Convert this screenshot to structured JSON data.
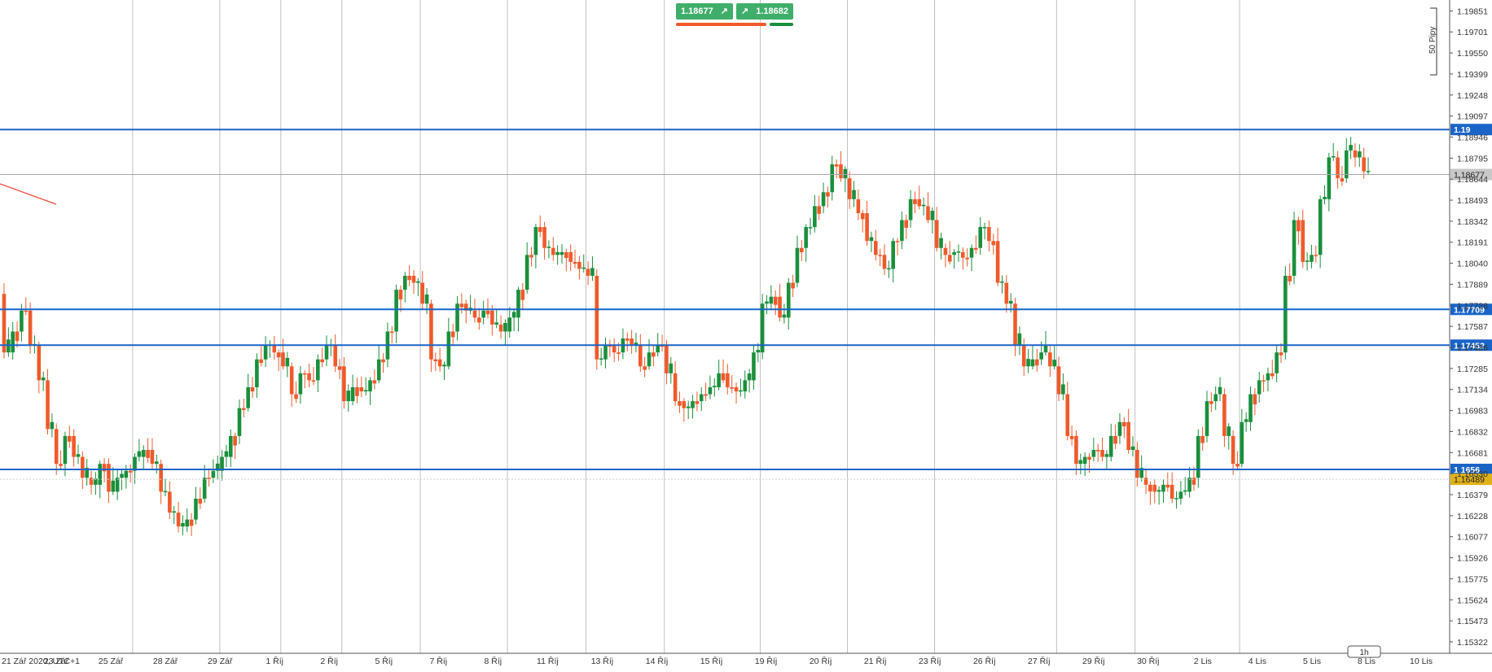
{
  "colors": {
    "bullish": "#1a8f3c",
    "bearish": "#f05a2b",
    "level_line": "#1a64c8",
    "level_label_bg": "#1a64c8",
    "current_price_bg": "#c8c8c8",
    "bid_price_bg": "#e0b21a",
    "quote_bg": "#3fae6a",
    "grid": "#c0c0c0",
    "axis_text": "#333333"
  },
  "quote_panel": {
    "sell_price": "1.18677",
    "sell_icon": "arrow-up-right-icon",
    "buy_icon": "arrow-up-right-icon",
    "buy_price": "1.18682"
  },
  "scale_label": "50 Pipy",
  "timeframe_label": "1h",
  "chart_data": {
    "type": "candlestick",
    "symbol_info": "21 Zář 2020, UTC+1",
    "ylim": [
      1.1524,
      1.1993
    ],
    "y_ticks": [
      "1.19851",
      "1.19701",
      "1.19550",
      "1.19399",
      "1.19248",
      "1.19097",
      "1.18946",
      "1.18795",
      "1.18644",
      "1.18493",
      "1.18342",
      "1.18191",
      "1.18040",
      "1.17889",
      "1.17738",
      "1.17587",
      "1.17436",
      "1.17285",
      "1.17134",
      "1.16983",
      "1.16832",
      "1.16681",
      "1.16530",
      "1.16379",
      "1.16228",
      "1.16077",
      "1.15926",
      "1.15775",
      "1.15624",
      "1.15473",
      "1.15322"
    ],
    "x_ticks": [
      "21 Zář 2020, UTC+1",
      "23 Zář",
      "25 Zář",
      "28 Zář",
      "29 Zář",
      "1 Říj",
      "2 Říj",
      "5 Říj",
      "7 Říj",
      "8 Říj",
      "11 Říj",
      "13 Říj",
      "14 Říj",
      "15 Říj",
      "19 Říj",
      "20 Říj",
      "21 Říj",
      "23 Říj",
      "26 Říj",
      "27 Říj",
      "29 Říj",
      "30 Říj",
      "2 Lis",
      "4 Lis",
      "5 Lis",
      "8 Lis",
      "10 Lis"
    ],
    "horizontal_levels": [
      {
        "value": 1.19,
        "label": "1.19"
      },
      {
        "value": 1.17709,
        "label": "1.17709"
      },
      {
        "value": 1.17452,
        "label": "1.17452"
      },
      {
        "value": 1.1656,
        "label": "1.1656"
      }
    ],
    "current_price": {
      "value": 1.18677,
      "label": "1.18677"
    },
    "secondary_price": {
      "value": 1.16489,
      "label": "1.16489"
    },
    "close_path": [
      [
        1.1782,
        1.174,
        1.1755,
        1.177,
        1.1745,
        1.172,
        1.1685,
        1.166,
        1.168,
        1.1665,
        1.165,
        1.1645,
        1.166,
        1.164,
        1.165,
        1.1655
      ],
      [
        1.1655,
        1.1665,
        1.167,
        1.166,
        1.164,
        1.1625,
        1.1615,
        1.162,
        1.1635,
        1.165,
        1.1655
      ],
      [
        1.1655,
        1.1665,
        1.168,
        1.17,
        1.1715,
        1.1735,
        1.1745,
        1.174
      ],
      [
        1.174,
        1.173,
        1.171,
        1.1725,
        1.172,
        1.1735,
        1.1745,
        1.173
      ],
      [
        1.173,
        1.1705,
        1.1715,
        1.1712,
        1.172,
        1.1735,
        1.1755,
        1.1785,
        1.1795,
        1.179
      ],
      [
        1.179,
        1.1775,
        1.1735,
        1.173,
        1.1755,
        1.1775,
        1.177,
        1.1765,
        1.177,
        1.176,
        1.1755
      ],
      [
        1.1755,
        1.1765,
        1.1785,
        1.181,
        1.183,
        1.1815,
        1.181,
        1.1812,
        1.1805,
        1.18
      ],
      [
        1.18,
        1.1795,
        1.1735,
        1.1745,
        1.174,
        1.175,
        1.1745,
        1.173,
        1.174,
        1.1745
      ],
      [
        1.1745,
        1.1725,
        1.1705,
        1.17,
        1.1705,
        1.171,
        1.1715,
        1.1725,
        1.1715,
        1.1712,
        1.172,
        1.174
      ],
      [
        1.174,
        1.1775,
        1.178,
        1.1765,
        1.179,
        1.1815,
        1.183,
        1.1845,
        1.1855,
        1.1875,
        1.1865
      ],
      [
        1.1865,
        1.185,
        1.184,
        1.182,
        1.181,
        1.18,
        1.182,
        1.1835,
        1.185,
        1.1845,
        1.1835
      ],
      [
        1.1835,
        1.1815,
        1.181,
        1.1812,
        1.1808,
        1.1815,
        1.183,
        1.182,
        1.179,
        1.1775,
        1.1745,
        1.173,
        1.1735,
        1.174,
        1.173
      ],
      [
        1.173,
        1.171,
        1.168,
        1.166,
        1.1665,
        1.167,
        1.1665,
        1.168,
        1.169,
        1.167
      ],
      [
        1.167,
        1.165,
        1.1645,
        1.164,
        1.1645,
        1.1635,
        1.164,
        1.165,
        1.168,
        1.1705,
        1.171,
        1.168,
        1.166
      ],
      [
        1.166,
        1.169,
        1.171,
        1.172,
        1.1725,
        1.174,
        1.1795,
        1.1835,
        1.1805,
        1.181,
        1.185,
        1.188,
        1.1865,
        1.1885,
        1.188,
        1.187
      ]
    ]
  }
}
